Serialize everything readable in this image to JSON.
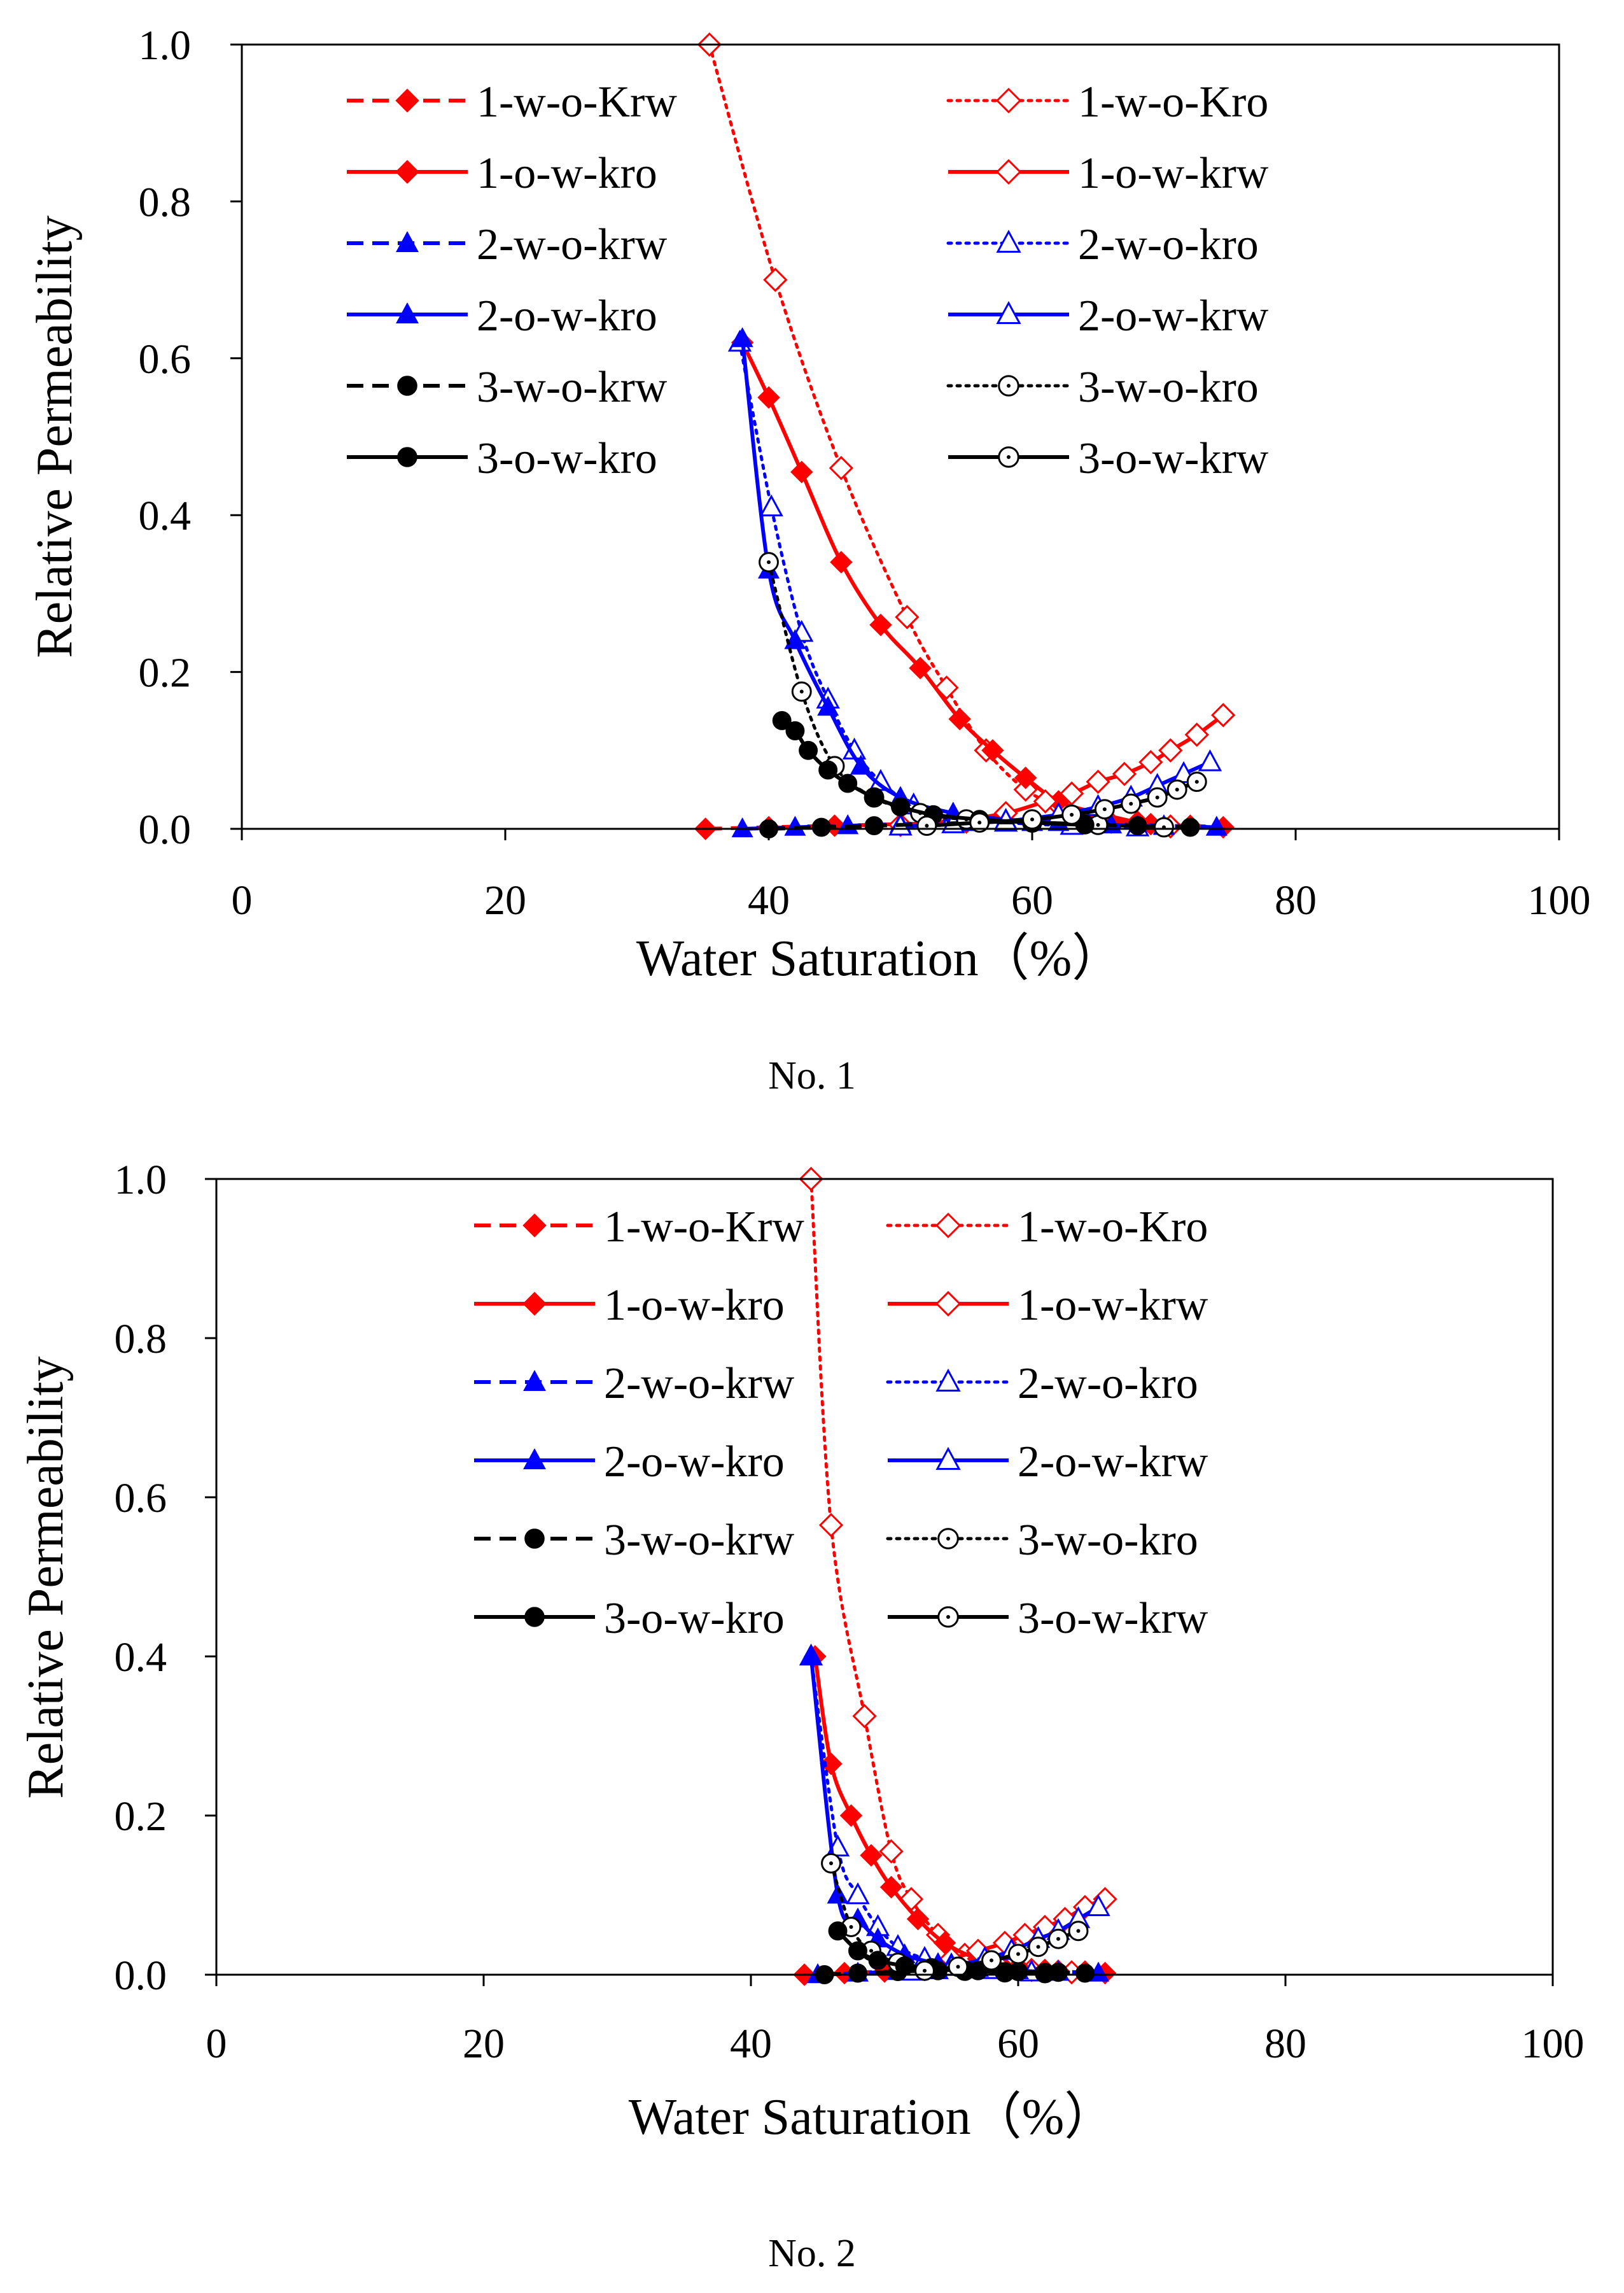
{
  "chart_data": [
    {
      "type": "line",
      "caption": "No. 1",
      "xlabel": "Water Saturation（%）",
      "ylabel": "Relative Permeability",
      "xlim": [
        0,
        100
      ],
      "ylim": [
        0,
        1.0
      ],
      "x_ticks": [
        "0",
        "20",
        "40",
        "60",
        "80",
        "100"
      ],
      "y_ticks": [
        "0.0",
        "0.2",
        "0.4",
        "0.6",
        "0.8",
        "1.0"
      ],
      "grid": false,
      "legend_position": "top",
      "series": [
        {
          "name": "1-w-o-Krw",
          "color": "#ff0000",
          "dash": "dashed",
          "marker": "diamond",
          "filled": true,
          "x": [
            35.2,
            40.0,
            45.0,
            50.0,
            55.0,
            60.0,
            63.0,
            66.0,
            69.0,
            72.0,
            74.5
          ],
          "y": [
            0.0,
            0.002,
            0.004,
            0.006,
            0.008,
            0.01,
            0.01,
            0.008,
            0.006,
            0.004,
            0.002
          ]
        },
        {
          "name": "1-w-o-Kro",
          "color": "#ff0000",
          "dash": "dotted",
          "marker": "diamond",
          "filled": false,
          "x": [
            35.5,
            40.5,
            45.5,
            50.5,
            53.5,
            56.5,
            59.5,
            62.0,
            65.0,
            68.0,
            70.5
          ],
          "y": [
            1.0,
            0.7,
            0.46,
            0.27,
            0.18,
            0.1,
            0.05,
            0.03,
            0.015,
            0.008,
            0.003
          ]
        },
        {
          "name": "1-o-w-kro",
          "color": "#ff0000",
          "dash": "solid",
          "marker": "diamond",
          "filled": true,
          "x": [
            38.0,
            40.0,
            42.5,
            45.5,
            48.5,
            51.5,
            54.5,
            57.0,
            59.5,
            62.0,
            65.0,
            68.0
          ],
          "y": [
            0.62,
            0.55,
            0.455,
            0.34,
            0.26,
            0.205,
            0.14,
            0.1,
            0.065,
            0.035,
            0.02,
            0.008
          ]
        },
        {
          "name": "1-o-w-krw",
          "color": "#ff0000",
          "dash": "solid",
          "marker": "diamond",
          "filled": false,
          "x": [
            50.0,
            54.0,
            58.0,
            61.0,
            63.0,
            65.0,
            67.0,
            69.0,
            70.5,
            72.5,
            74.5
          ],
          "y": [
            0.005,
            0.01,
            0.02,
            0.035,
            0.045,
            0.06,
            0.07,
            0.085,
            0.1,
            0.12,
            0.145
          ]
        },
        {
          "name": "2-w-o-krw",
          "color": "#0000ff",
          "dash": "dashed",
          "marker": "triangle",
          "filled": true,
          "x": [
            38.0,
            42.0,
            46.0,
            50.0,
            55.0,
            60.0,
            65.0,
            70.0,
            74.0
          ],
          "y": [
            0.0,
            0.002,
            0.004,
            0.006,
            0.008,
            0.008,
            0.006,
            0.004,
            0.002
          ]
        },
        {
          "name": "2-w-o-kro",
          "color": "#0000ff",
          "dash": "dotted",
          "marker": "triangle",
          "filled": false,
          "x": [
            37.8,
            40.2,
            42.5,
            44.5,
            46.5,
            48.5,
            51.0,
            54.0,
            58.0,
            63.0,
            68.0
          ],
          "y": [
            0.62,
            0.41,
            0.25,
            0.165,
            0.1,
            0.06,
            0.03,
            0.015,
            0.008,
            0.004,
            0.002
          ]
        },
        {
          "name": "2-o-w-kro",
          "color": "#0000ff",
          "dash": "solid",
          "marker": "triangle",
          "filled": true,
          "x": [
            38.0,
            40.0,
            42.0,
            44.5,
            47.0,
            50.0,
            54.0,
            58.0,
            62.0,
            66.0,
            70.0
          ],
          "y": [
            0.625,
            0.33,
            0.24,
            0.155,
            0.08,
            0.04,
            0.02,
            0.012,
            0.008,
            0.005,
            0.003
          ]
        },
        {
          "name": "2-o-w-krw",
          "color": "#0000ff",
          "dash": "solid",
          "marker": "triangle",
          "filled": false,
          "x": [
            50.0,
            54.0,
            58.0,
            62.0,
            65.0,
            67.5,
            69.5,
            71.5,
            73.5
          ],
          "y": [
            0.003,
            0.006,
            0.01,
            0.018,
            0.028,
            0.04,
            0.055,
            0.07,
            0.085
          ]
        },
        {
          "name": "3-w-o-krw",
          "color": "#000000",
          "dash": "dashed",
          "marker": "circle",
          "filled": true,
          "x": [
            40.0,
            44.0,
            48.0,
            52.0,
            56.0,
            60.0,
            64.0,
            68.0,
            72.0
          ],
          "y": [
            0.0,
            0.002,
            0.004,
            0.006,
            0.008,
            0.008,
            0.006,
            0.004,
            0.002
          ]
        },
        {
          "name": "3-w-o-kro",
          "color": "#000000",
          "dash": "dotted",
          "marker": "circle",
          "filled": false,
          "x": [
            40.0,
            42.5,
            45.0,
            48.0,
            51.5,
            55.0,
            60.0,
            65.0,
            70.0
          ],
          "y": [
            0.34,
            0.175,
            0.08,
            0.04,
            0.02,
            0.012,
            0.008,
            0.005,
            0.002
          ]
        },
        {
          "name": "3-o-w-kro",
          "color": "#000000",
          "dash": "solid",
          "marker": "circle",
          "filled": true,
          "x": [
            41.0,
            42.0,
            43.0,
            44.5,
            46.0,
            48.0,
            50.0,
            52.5,
            56.0,
            60.0,
            64.0
          ],
          "y": [
            0.138,
            0.125,
            0.1,
            0.075,
            0.058,
            0.04,
            0.028,
            0.018,
            0.012,
            0.008,
            0.005
          ]
        },
        {
          "name": "3-o-w-krw",
          "color": "#000000",
          "dash": "solid",
          "marker": "circle",
          "filled": false,
          "x": [
            52.0,
            56.0,
            60.0,
            63.0,
            65.5,
            67.5,
            69.5,
            71.0,
            72.5
          ],
          "y": [
            0.004,
            0.008,
            0.012,
            0.018,
            0.025,
            0.032,
            0.04,
            0.05,
            0.06
          ]
        }
      ]
    },
    {
      "type": "line",
      "caption": "No. 2",
      "xlabel": "Water Saturation（%）",
      "ylabel": "Relative Permeability",
      "xlim": [
        0,
        100
      ],
      "ylim": [
        0,
        1.0
      ],
      "x_ticks": [
        "0",
        "20",
        "40",
        "60",
        "80",
        "100"
      ],
      "y_ticks": [
        "0.0",
        "0.2",
        "0.4",
        "0.6",
        "0.8",
        "1.0"
      ],
      "grid": false,
      "legend_position": "top",
      "series": [
        {
          "name": "1-w-o-Krw",
          "color": "#ff0000",
          "dash": "dashed",
          "marker": "diamond",
          "filled": true,
          "x": [
            44.0,
            47.0,
            50.0,
            53.0,
            56.0,
            59.0,
            62.0,
            65.0,
            66.5
          ],
          "y": [
            0.0,
            0.002,
            0.004,
            0.006,
            0.008,
            0.008,
            0.006,
            0.004,
            0.002
          ]
        },
        {
          "name": "1-w-o-Kro",
          "color": "#ff0000",
          "dash": "dotted",
          "marker": "diamond",
          "filled": false,
          "x": [
            44.5,
            46.0,
            48.5,
            50.5,
            52.0,
            54.0,
            56.0,
            58.5,
            61.0,
            64.0
          ],
          "y": [
            1.0,
            0.565,
            0.325,
            0.155,
            0.095,
            0.05,
            0.025,
            0.012,
            0.006,
            0.003
          ]
        },
        {
          "name": "1-o-w-kro",
          "color": "#ff0000",
          "dash": "solid",
          "marker": "diamond",
          "filled": true,
          "x": [
            44.8,
            46.0,
            47.5,
            49.0,
            50.5,
            52.5,
            54.5,
            57.0,
            60.0,
            63.0
          ],
          "y": [
            0.4,
            0.265,
            0.2,
            0.15,
            0.11,
            0.07,
            0.04,
            0.02,
            0.01,
            0.005
          ]
        },
        {
          "name": "1-o-w-krw",
          "color": "#ff0000",
          "dash": "solid",
          "marker": "diamond",
          "filled": false,
          "x": [
            53.0,
            55.0,
            57.0,
            59.0,
            60.5,
            62.0,
            63.5,
            65.0,
            66.5
          ],
          "y": [
            0.01,
            0.02,
            0.03,
            0.04,
            0.05,
            0.06,
            0.07,
            0.085,
            0.095
          ]
        },
        {
          "name": "2-w-o-krw",
          "color": "#0000ff",
          "dash": "dashed",
          "marker": "triangle",
          "filled": true,
          "x": [
            45.0,
            48.0,
            51.0,
            54.0,
            57.0,
            60.0,
            63.0,
            66.0
          ],
          "y": [
            0.0,
            0.002,
            0.004,
            0.005,
            0.006,
            0.005,
            0.004,
            0.002
          ]
        },
        {
          "name": "2-w-o-kro",
          "color": "#0000ff",
          "dash": "dotted",
          "marker": "triangle",
          "filled": false,
          "x": [
            44.5,
            46.5,
            48.0,
            49.5,
            51.0,
            53.0,
            55.0,
            58.0,
            61.0
          ],
          "y": [
            0.4,
            0.16,
            0.1,
            0.06,
            0.035,
            0.02,
            0.012,
            0.006,
            0.003
          ]
        },
        {
          "name": "2-o-w-kro",
          "color": "#0000ff",
          "dash": "solid",
          "marker": "triangle",
          "filled": true,
          "x": [
            44.5,
            46.5,
            48.0,
            49.5,
            51.5,
            54.0,
            57.0,
            60.0,
            63.0
          ],
          "y": [
            0.4,
            0.1,
            0.07,
            0.045,
            0.025,
            0.014,
            0.008,
            0.005,
            0.003
          ]
        },
        {
          "name": "2-o-w-krw",
          "color": "#0000ff",
          "dash": "solid",
          "marker": "triangle",
          "filled": false,
          "x": [
            52.0,
            55.0,
            57.5,
            59.5,
            61.5,
            63.0,
            64.5,
            66.0
          ],
          "y": [
            0.004,
            0.01,
            0.02,
            0.03,
            0.045,
            0.055,
            0.07,
            0.085
          ]
        },
        {
          "name": "3-w-o-krw",
          "color": "#000000",
          "dash": "dashed",
          "marker": "circle",
          "filled": true,
          "x": [
            45.5,
            48.0,
            51.0,
            54.0,
            57.0,
            60.0,
            63.0,
            65.0
          ],
          "y": [
            0.0,
            0.002,
            0.004,
            0.005,
            0.005,
            0.004,
            0.003,
            0.002
          ]
        },
        {
          "name": "3-w-o-kro",
          "color": "#000000",
          "dash": "dotted",
          "marker": "circle",
          "filled": false,
          "x": [
            46.0,
            47.5,
            49.0,
            51.0,
            53.5,
            56.0,
            59.0,
            62.0
          ],
          "y": [
            0.14,
            0.06,
            0.03,
            0.015,
            0.008,
            0.005,
            0.003,
            0.002
          ]
        },
        {
          "name": "3-o-w-kro",
          "color": "#000000",
          "dash": "solid",
          "marker": "circle",
          "filled": true,
          "x": [
            46.5,
            48.0,
            49.5,
            51.5,
            53.5,
            56.0,
            59.0,
            62.0
          ],
          "y": [
            0.055,
            0.03,
            0.018,
            0.011,
            0.007,
            0.005,
            0.003,
            0.002
          ]
        },
        {
          "name": "3-o-w-krw",
          "color": "#000000",
          "dash": "solid",
          "marker": "circle",
          "filled": false,
          "x": [
            53.0,
            55.5,
            58.0,
            60.0,
            61.5,
            63.0,
            64.5
          ],
          "y": [
            0.005,
            0.01,
            0.018,
            0.026,
            0.035,
            0.045,
            0.055
          ]
        }
      ]
    }
  ]
}
